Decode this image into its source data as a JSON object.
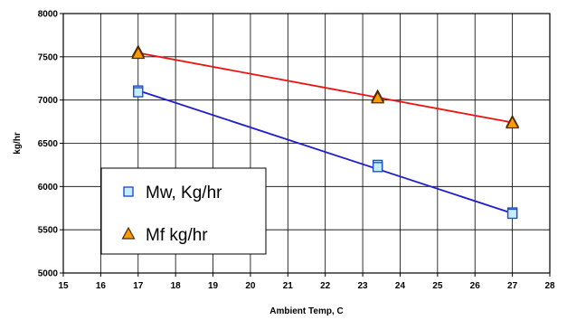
{
  "chart_data": {
    "type": "scatter",
    "title": "",
    "xlabel": "Ambient Temp, C",
    "ylabel": "kg/hr",
    "xlim": [
      15,
      28
    ],
    "ylim": [
      5000,
      8000
    ],
    "x_ticks": [
      "15",
      "16",
      "17",
      "18",
      "19",
      "20",
      "21",
      "22",
      "23",
      "24",
      "25",
      "26",
      "27",
      "28"
    ],
    "y_ticks": [
      "5000",
      "5500",
      "6000",
      "6500",
      "7000",
      "7500",
      "8000"
    ],
    "grid": true,
    "legend_placement": "bottom-left",
    "series": [
      {
        "name": "Mw, Kg/hr",
        "marker": "square",
        "marker_color": "#c6ecff",
        "marker_stroke": "#1f4fd1",
        "line_color": "#1f1fcc",
        "points": [
          {
            "x": 17,
            "y": 7110
          },
          {
            "x": 17,
            "y": 7090
          },
          {
            "x": 23.4,
            "y": 6250
          },
          {
            "x": 23.4,
            "y": 6225
          },
          {
            "x": 27,
            "y": 5700
          },
          {
            "x": 27,
            "y": 5685
          }
        ],
        "trend": [
          {
            "x": 17,
            "y": 7110
          },
          {
            "x": 27,
            "y": 5690
          }
        ]
      },
      {
        "name": "Mf kg/hr",
        "marker": "triangle",
        "marker_color": "#ff9a00",
        "marker_stroke": "#4a2a00",
        "line_color": "#ee1111",
        "points": [
          {
            "x": 17,
            "y": 7555
          },
          {
            "x": 17,
            "y": 7535
          },
          {
            "x": 23.4,
            "y": 7040
          },
          {
            "x": 23.4,
            "y": 7020
          },
          {
            "x": 27,
            "y": 6745
          },
          {
            "x": 27,
            "y": 6730
          }
        ],
        "trend": [
          {
            "x": 17,
            "y": 7545
          },
          {
            "x": 27,
            "y": 6740
          }
        ]
      }
    ]
  }
}
